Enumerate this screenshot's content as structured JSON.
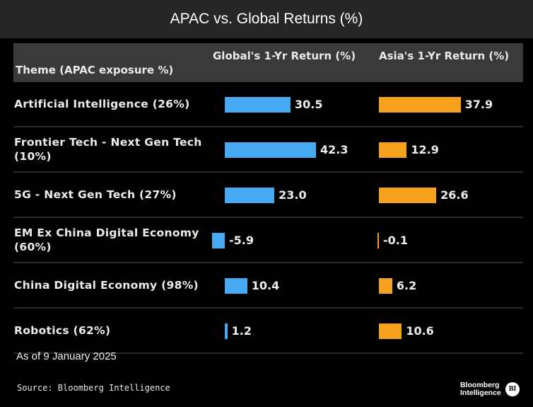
{
  "title": "APAC vs. Global Returns (%)",
  "chart_data": {
    "type": "table",
    "title": "APAC vs. Global Returns (%)",
    "columns": [
      "Theme (APAC exposure %)",
      "Global's 1-Yr Return (%)",
      "Asia's 1-Yr Return (%)"
    ],
    "series": [
      {
        "name": "Global's 1-Yr Return (%)",
        "color": "#45aaf2",
        "values": [
          30.5,
          42.3,
          23.0,
          -5.9,
          10.4,
          1.2
        ]
      },
      {
        "name": "Asia's 1-Yr Return (%)",
        "color": "#f5a11c",
        "values": [
          37.9,
          12.9,
          26.6,
          -0.1,
          6.2,
          10.6
        ]
      }
    ],
    "categories": [
      "Artificial Intelligence (26%)",
      "Frontier Tech - Next Gen Tech (10%)",
      "5G - Next Gen Tech (27%)",
      "EM Ex China Digital Economy (60%)",
      "China Digital Economy (98%)",
      "Robotics (62%)"
    ],
    "rows": [
      {
        "theme": "Artificial Intelligence (26%)",
        "global": "30.5",
        "asia": "37.9"
      },
      {
        "theme": "Frontier Tech - Next Gen Tech (10%)",
        "global": "42.3",
        "asia": "12.9"
      },
      {
        "theme": "5G - Next Gen Tech (27%)",
        "global": "23.0",
        "asia": "26.6"
      },
      {
        "theme": "EM Ex China Digital Economy (60%)",
        "global": "-5.9",
        "asia": "-0.1"
      },
      {
        "theme": "China Digital Economy (98%)",
        "global": "10.4",
        "asia": "6.2"
      },
      {
        "theme": "Robotics (62%)",
        "global": "1.2",
        "asia": "10.6"
      }
    ]
  },
  "footer": {
    "as_of": "As of 9 January 2025",
    "source": "Source: Bloomberg Intelligence",
    "logo_line1": "Bloomberg",
    "logo_line2": "Intelligence",
    "logo_badge": "BI"
  },
  "colors": {
    "global_bar": "#45aaf2",
    "asia_bar": "#f5a11c"
  }
}
